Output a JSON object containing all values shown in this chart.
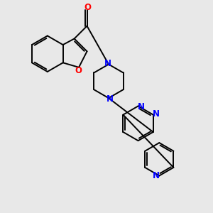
{
  "bg_color": "#e8e8e8",
  "bond_color": "#000000",
  "N_color": "#0000ff",
  "O_color": "#ff0000",
  "font_size": 8.5,
  "line_width": 1.4,
  "figsize": [
    3.0,
    3.0
  ],
  "dpi": 100,
  "xlim": [
    0,
    10
  ],
  "ylim": [
    0,
    10
  ]
}
